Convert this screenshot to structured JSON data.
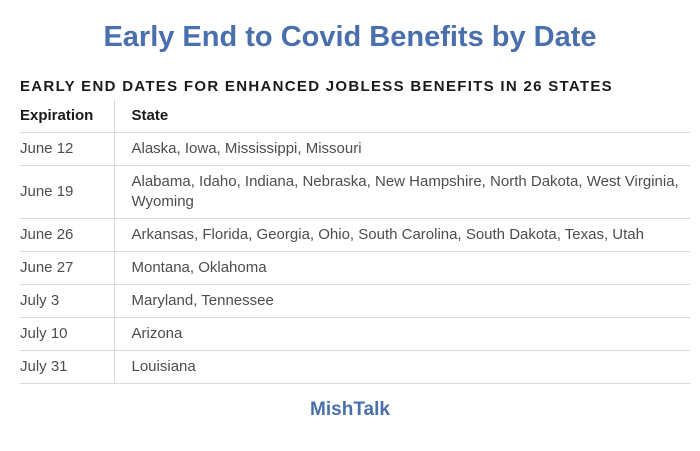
{
  "page": {
    "title": "Early End to Covid Benefits by Date",
    "footer": "MishTalk"
  },
  "colors": {
    "accent_blue": "#4a6fad",
    "heading_black": "#1a1a1a",
    "body_text": "#4d4d4d",
    "divider": "#d9d9d9"
  },
  "table": {
    "caption": "EARLY END DATES FOR ENHANCED JOBLESS BENEFITS IN 26 STATES",
    "columns": [
      "Expiration",
      "State"
    ],
    "rows": [
      {
        "expiration": "June 12",
        "states": "Alaska, Iowa, Mississippi, Missouri"
      },
      {
        "expiration": "June 19",
        "states": "Alabama, Idaho, Indiana, Nebraska, New Hampshire, North Dakota, West Virginia, Wyoming"
      },
      {
        "expiration": "June 26",
        "states": "Arkansas, Florida, Georgia, Ohio, South Carolina, South Dakota, Texas, Utah"
      },
      {
        "expiration": "June 27",
        "states": "Montana, Oklahoma"
      },
      {
        "expiration": "July 3",
        "states": "Maryland, Tennessee"
      },
      {
        "expiration": "July 10",
        "states": "Arizona"
      },
      {
        "expiration": "July 31",
        "states": "Louisiana"
      }
    ]
  },
  "chart_data": {
    "type": "table",
    "title": "Early End to Covid Benefits by Date",
    "subtitle": "EARLY END DATES FOR ENHANCED JOBLESS BENEFITS IN 26 STATES",
    "source": "MishTalk",
    "columns": [
      "Expiration",
      "State"
    ],
    "rows": [
      [
        "June 12",
        "Alaska, Iowa, Mississippi, Missouri"
      ],
      [
        "June 19",
        "Alabama, Idaho, Indiana, Nebraska, New Hampshire, North Dakota, West Virginia, Wyoming"
      ],
      [
        "June 26",
        "Arkansas, Florida, Georgia, Ohio, South Carolina, South Dakota, Texas, Utah"
      ],
      [
        "June 27",
        "Montana, Oklahoma"
      ],
      [
        "July 3",
        "Maryland, Tennessee"
      ],
      [
        "July 10",
        "Arizona"
      ],
      [
        "July 31",
        "Louisiana"
      ]
    ],
    "total_states": 26
  }
}
